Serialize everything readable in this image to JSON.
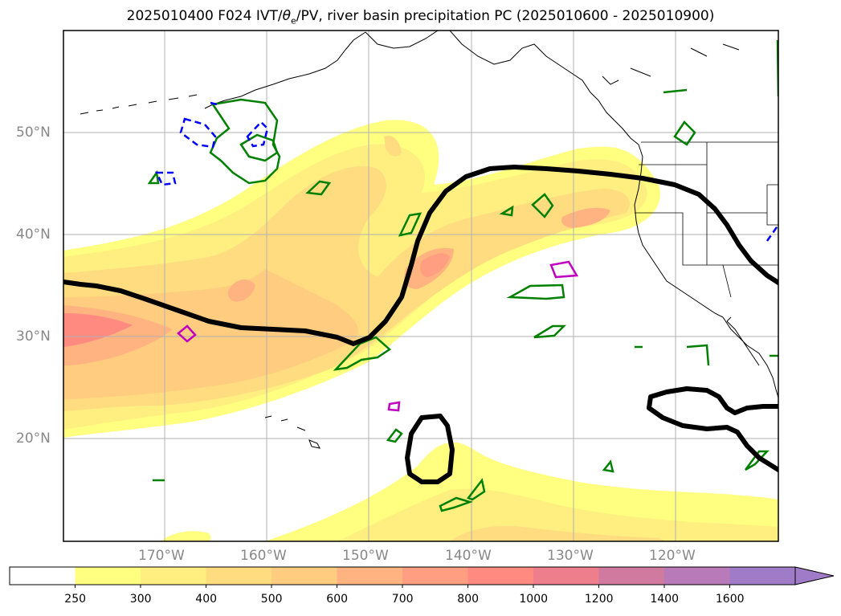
{
  "title": {
    "prefix": "2025010400 F024 IVT/",
    "theta": "θ",
    "theta_sub": "e",
    "suffix": "/PV, river basin precipitation PC (2025010600 - 2025010900)"
  },
  "map": {
    "lat_labels": [
      "50°N",
      "40°N",
      "30°N",
      "20°N"
    ],
    "lon_labels": [
      "170°W",
      "160°W",
      "150°W",
      "140°W",
      "130°W",
      "120°W"
    ],
    "colors": {
      "ocean": "#ffffff",
      "coast": "#000000",
      "pv_contour": "#000000",
      "theta_contour": "#008000",
      "pv_dashed": "#0000ff",
      "magenta_contour": "#c000c0",
      "grid": "#b0b0b0"
    }
  },
  "colorbar": {
    "levels": [
      "250",
      "300",
      "400",
      "500",
      "600",
      "700",
      "800",
      "1000",
      "1200",
      "1400",
      "1600"
    ],
    "colors": [
      "#ffffff",
      "#ffff80",
      "#ffee80",
      "#ffdc80",
      "#ffcc80",
      "#ffb380",
      "#ff9e80",
      "#ff8a80",
      "#ee7e8c",
      "#d07aa0",
      "#b87ab8",
      "#a07cc8"
    ],
    "extend": "max"
  }
}
